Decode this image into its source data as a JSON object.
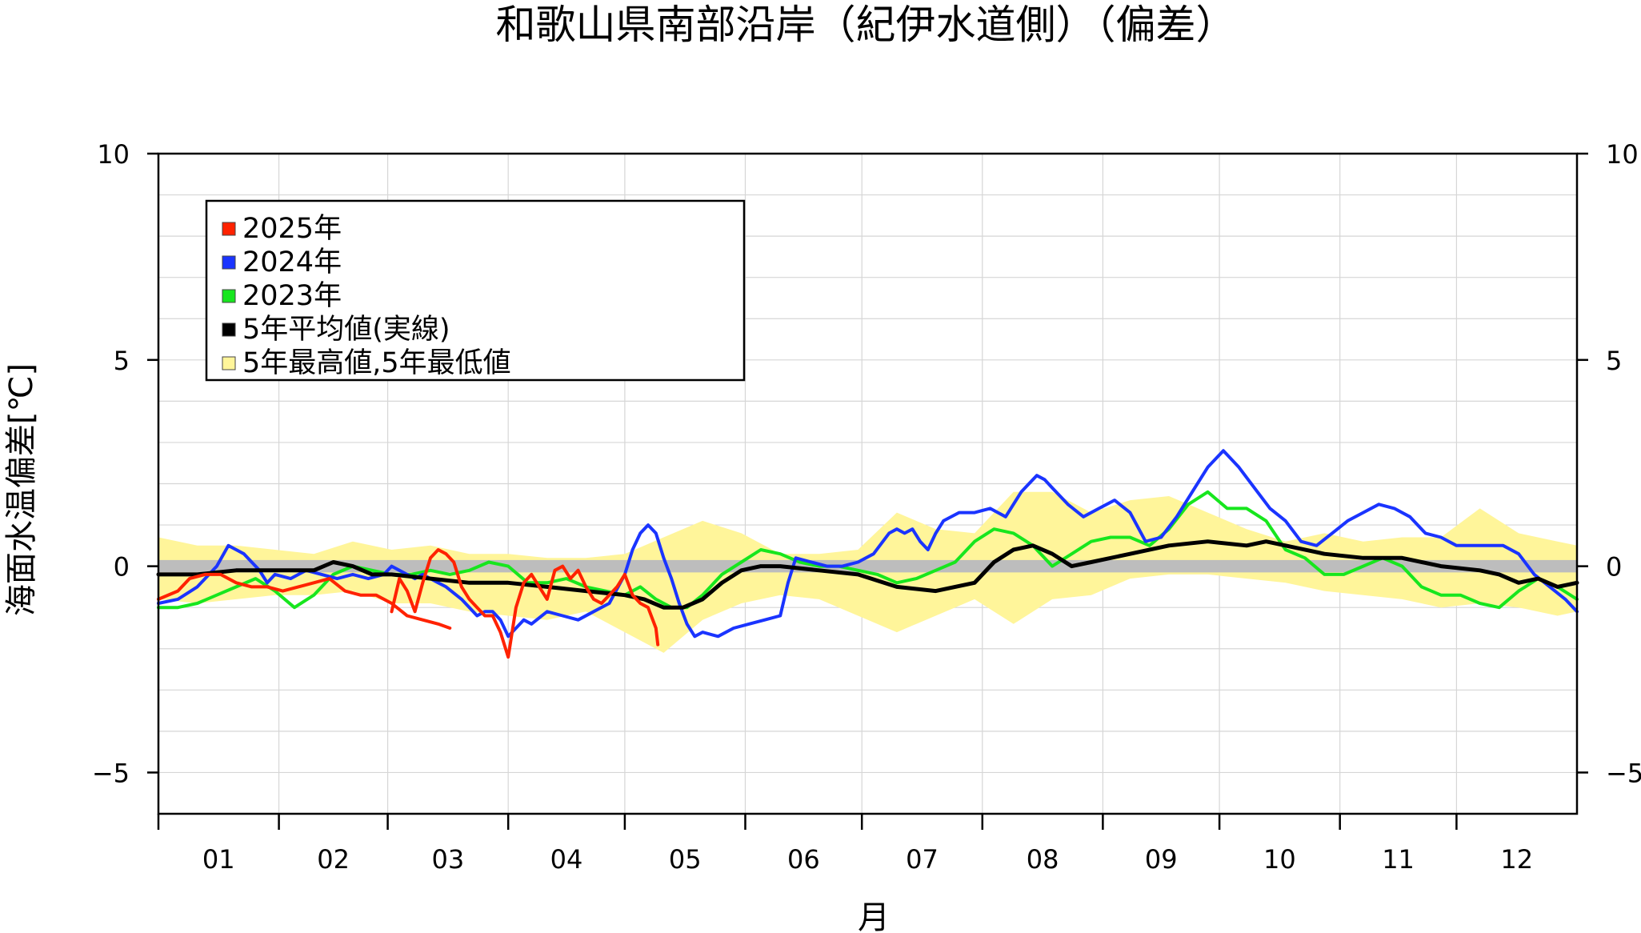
{
  "chart_data": {
    "type": "line",
    "title": "和歌山県南部沿岸（紀伊水道側）（偏差）",
    "xlabel": "月",
    "ylabel": "海面水温偏差[℃]",
    "xlim": [
      0,
      365
    ],
    "ylim": [
      -6,
      10
    ],
    "y_ticks": [
      -5,
      0,
      5,
      10
    ],
    "y_tick_labels": [
      "−5",
      "0",
      "5",
      "10"
    ],
    "x_tick_labels": [
      "01",
      "02",
      "03",
      "04",
      "05",
      "06",
      "07",
      "08",
      "09",
      "10",
      "11",
      "12"
    ],
    "grid": true,
    "legend_position": "top-left",
    "zero_band_color": "#bdbdbd",
    "band": {
      "name": "5年最高値,5年最低値",
      "color": "#fff59a",
      "x": [
        0,
        10,
        20,
        30,
        40,
        50,
        60,
        70,
        80,
        90,
        100,
        110,
        120,
        130,
        140,
        150,
        160,
        170,
        180,
        190,
        200,
        210,
        220,
        230,
        240,
        250,
        260,
        270,
        280,
        290,
        300,
        310,
        320,
        330,
        340,
        350,
        360,
        365
      ],
      "upper": [
        0.7,
        0.5,
        0.5,
        0.4,
        0.3,
        0.6,
        0.4,
        0.5,
        0.3,
        0.3,
        0.2,
        0.2,
        0.3,
        0.7,
        1.1,
        0.8,
        0.3,
        0.3,
        0.4,
        1.3,
        0.9,
        0.8,
        1.8,
        1.8,
        1.3,
        1.6,
        1.7,
        1.3,
        0.9,
        0.6,
        0.8,
        0.6,
        0.7,
        0.7,
        1.4,
        0.8,
        0.6,
        0.5
      ],
      "lower": [
        -0.8,
        -0.9,
        -0.8,
        -0.7,
        -0.7,
        -0.6,
        -0.9,
        -0.9,
        -1.1,
        -1.2,
        -1.3,
        -1.1,
        -1.6,
        -2.1,
        -1.3,
        -0.9,
        -0.7,
        -0.8,
        -1.2,
        -1.6,
        -1.2,
        -0.8,
        -1.4,
        -0.8,
        -0.7,
        -0.3,
        -0.2,
        -0.2,
        -0.3,
        -0.4,
        -0.6,
        -0.7,
        -0.8,
        -1.0,
        -0.9,
        -1.0,
        -1.2,
        -1.1
      ]
    },
    "series": [
      {
        "name": "2025年",
        "color": "#ff2200",
        "x": [
          0,
          5,
          8,
          12,
          16,
          20,
          24,
          28,
          32,
          36,
          40,
          44,
          48,
          52,
          56,
          60,
          64,
          68,
          72,
          75,
          null,
          60,
          62,
          64,
          66,
          68,
          70,
          72,
          74,
          76,
          78,
          80,
          82,
          84,
          86,
          88,
          90,
          92,
          94,
          96,
          98,
          100,
          102,
          104,
          106,
          108,
          110,
          112,
          114,
          116,
          118,
          120,
          122,
          124,
          126,
          128,
          128.5
        ],
        "y": [
          -0.8,
          -0.6,
          -0.3,
          -0.2,
          -0.2,
          -0.4,
          -0.5,
          -0.5,
          -0.6,
          -0.5,
          -0.4,
          -0.3,
          -0.6,
          -0.7,
          -0.7,
          -0.9,
          -1.2,
          -1.3,
          -1.4,
          -1.5,
          null,
          -1.1,
          -0.3,
          -0.6,
          -1.1,
          -0.4,
          0.2,
          0.4,
          0.3,
          0.1,
          -0.5,
          -0.8,
          -1.0,
          -1.2,
          -1.2,
          -1.6,
          -2.2,
          -1.0,
          -0.4,
          -0.2,
          -0.5,
          -0.8,
          -0.1,
          0.0,
          -0.3,
          -0.1,
          -0.5,
          -0.8,
          -0.9,
          -0.7,
          -0.5,
          -0.2,
          -0.7,
          -0.9,
          -1.0,
          -1.5,
          -1.9
        ]
      },
      {
        "name": "2024年",
        "color": "#1a34ff",
        "x": [
          0,
          5,
          10,
          15,
          18,
          20,
          22,
          26,
          28,
          30,
          34,
          38,
          42,
          46,
          50,
          54,
          58,
          60,
          62,
          64,
          66,
          68,
          70,
          72,
          74,
          78,
          82,
          84,
          86,
          88,
          90,
          92,
          94,
          96,
          100,
          104,
          108,
          112,
          116,
          120,
          122,
          124,
          126,
          128,
          130,
          132,
          134,
          136,
          138,
          140,
          144,
          148,
          152,
          156,
          160,
          162,
          164,
          168,
          172,
          176,
          180,
          184,
          188,
          190,
          192,
          194,
          196,
          198,
          200,
          202,
          206,
          210,
          214,
          218,
          222,
          226,
          228,
          230,
          234,
          238,
          242,
          246,
          250,
          254,
          258,
          262,
          266,
          270,
          274,
          278,
          282,
          286,
          290,
          294,
          298,
          302,
          306,
          310,
          314,
          318,
          322,
          326,
          330,
          334,
          338,
          342,
          346,
          350,
          354,
          358,
          362,
          365
        ],
        "y": [
          -0.9,
          -0.8,
          -0.5,
          0.0,
          0.5,
          0.4,
          0.3,
          -0.1,
          -0.4,
          -0.2,
          -0.3,
          -0.1,
          -0.2,
          -0.3,
          -0.2,
          -0.3,
          -0.2,
          0.0,
          -0.1,
          -0.2,
          -0.3,
          -0.2,
          -0.3,
          -0.4,
          -0.5,
          -0.8,
          -1.2,
          -1.1,
          -1.1,
          -1.3,
          -1.7,
          -1.5,
          -1.3,
          -1.4,
          -1.1,
          -1.2,
          -1.3,
          -1.1,
          -0.9,
          -0.2,
          0.4,
          0.8,
          1.0,
          0.8,
          0.2,
          -0.3,
          -0.9,
          -1.4,
          -1.7,
          -1.6,
          -1.7,
          -1.5,
          -1.4,
          -1.3,
          -1.2,
          -0.4,
          0.2,
          0.1,
          0.0,
          0.0,
          0.1,
          0.3,
          0.8,
          0.9,
          0.8,
          0.9,
          0.6,
          0.4,
          0.8,
          1.1,
          1.3,
          1.3,
          1.4,
          1.2,
          1.8,
          2.2,
          2.1,
          1.9,
          1.5,
          1.2,
          1.4,
          1.6,
          1.3,
          0.6,
          0.7,
          1.2,
          1.8,
          2.4,
          2.8,
          2.4,
          1.9,
          1.4,
          1.1,
          0.6,
          0.5,
          0.8,
          1.1,
          1.3,
          1.5,
          1.4,
          1.2,
          0.8,
          0.7,
          0.5,
          0.5,
          0.5,
          0.5,
          0.3,
          -0.2,
          -0.5,
          -0.8,
          -1.1
        ]
      },
      {
        "name": "2023年",
        "color": "#17e61e",
        "x": [
          0,
          5,
          10,
          15,
          20,
          25,
          30,
          35,
          40,
          45,
          50,
          55,
          60,
          65,
          70,
          75,
          80,
          85,
          90,
          95,
          100,
          105,
          110,
          115,
          120,
          124,
          128,
          132,
          136,
          140,
          145,
          150,
          155,
          160,
          165,
          170,
          175,
          180,
          185,
          190,
          195,
          200,
          205,
          210,
          215,
          220,
          225,
          230,
          235,
          240,
          245,
          250,
          255,
          260,
          265,
          270,
          275,
          280,
          285,
          290,
          295,
          300,
          305,
          310,
          315,
          320,
          325,
          330,
          335,
          340,
          345,
          350,
          355,
          360,
          365
        ],
        "y": [
          -1.0,
          -1.0,
          -0.9,
          -0.7,
          -0.5,
          -0.3,
          -0.6,
          -1.0,
          -0.7,
          -0.2,
          0.0,
          -0.1,
          -0.2,
          -0.2,
          -0.1,
          -0.2,
          -0.1,
          0.1,
          0.0,
          -0.4,
          -0.4,
          -0.3,
          -0.5,
          -0.6,
          -0.7,
          -0.5,
          -0.8,
          -1.0,
          -1.0,
          -0.7,
          -0.2,
          0.1,
          0.4,
          0.3,
          0.1,
          0.0,
          0.0,
          -0.1,
          -0.2,
          -0.4,
          -0.3,
          -0.1,
          0.1,
          0.6,
          0.9,
          0.8,
          0.5,
          0.0,
          0.3,
          0.6,
          0.7,
          0.7,
          0.5,
          0.9,
          1.5,
          1.8,
          1.4,
          1.4,
          1.1,
          0.4,
          0.2,
          -0.2,
          -0.2,
          0.0,
          0.2,
          0.0,
          -0.5,
          -0.7,
          -0.7,
          -0.9,
          -1.0,
          -0.6,
          -0.3,
          -0.5,
          -0.8
        ]
      },
      {
        "name": "5年平均値(実線)",
        "color": "#000000",
        "x": [
          0,
          10,
          20,
          30,
          40,
          45,
          50,
          55,
          60,
          70,
          80,
          90,
          100,
          110,
          120,
          125,
          130,
          135,
          140,
          145,
          150,
          155,
          160,
          170,
          180,
          190,
          200,
          205,
          210,
          215,
          220,
          225,
          230,
          235,
          240,
          250,
          260,
          270,
          280,
          285,
          290,
          300,
          310,
          320,
          330,
          340,
          345,
          350,
          355,
          360,
          365
        ],
        "y": [
          -0.2,
          -0.2,
          -0.1,
          -0.1,
          -0.1,
          0.1,
          0.0,
          -0.2,
          -0.2,
          -0.3,
          -0.4,
          -0.4,
          -0.5,
          -0.6,
          -0.7,
          -0.8,
          -1.0,
          -1.0,
          -0.8,
          -0.4,
          -0.1,
          0.0,
          0.0,
          -0.1,
          -0.2,
          -0.5,
          -0.6,
          -0.5,
          -0.4,
          0.1,
          0.4,
          0.5,
          0.3,
          0.0,
          0.1,
          0.3,
          0.5,
          0.6,
          0.5,
          0.6,
          0.5,
          0.3,
          0.2,
          0.2,
          0.0,
          -0.1,
          -0.2,
          -0.4,
          -0.3,
          -0.5,
          -0.4
        ]
      }
    ]
  }
}
